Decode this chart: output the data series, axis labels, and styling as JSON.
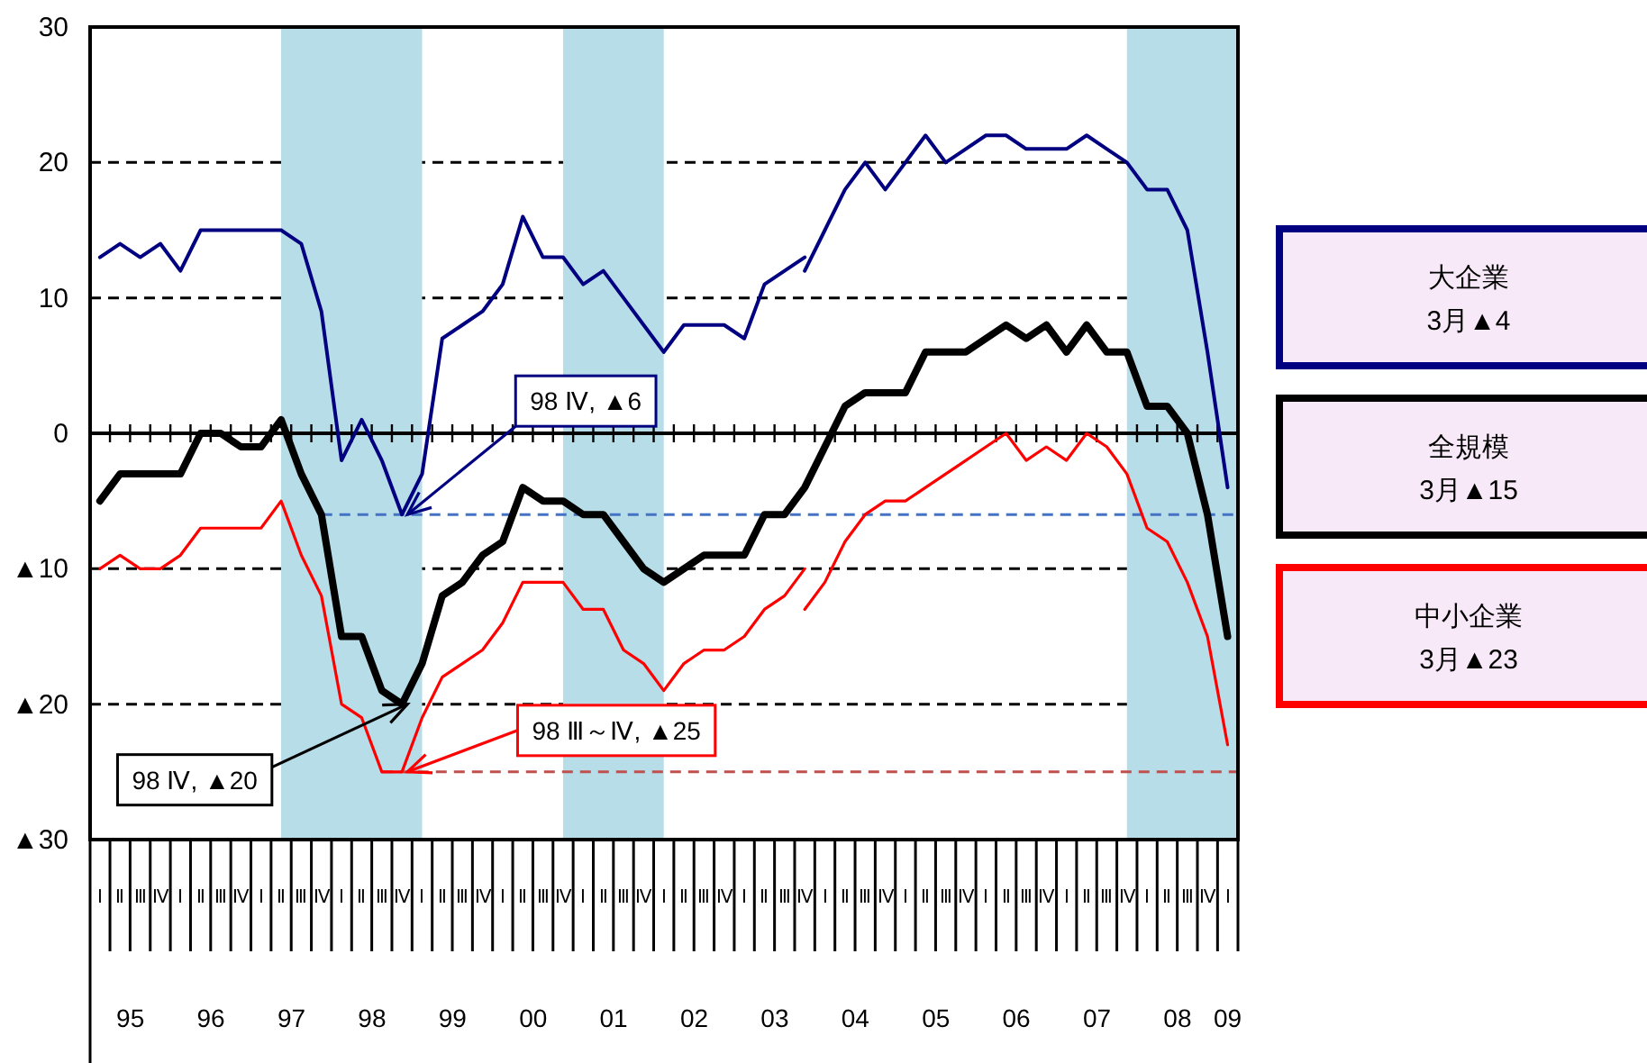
{
  "chart_data": {
    "type": "line",
    "x": [
      "1995-02-15",
      "1995-05-15",
      "1995-08-15",
      "1995-11-15",
      "1996-02-15",
      "1996-05-15",
      "1996-08-15",
      "1996-11-15",
      "1997-02-15",
      "1997-05-15",
      "1997-08-15",
      "1997-11-15",
      "1998-02-15",
      "1998-05-15",
      "1998-08-15",
      "1998-11-15",
      "1999-02-15",
      "1999-05-15",
      "1999-08-15",
      "1999-11-15",
      "2000-02-15",
      "2000-05-15",
      "2000-08-15",
      "2000-11-15",
      "2001-02-15",
      "2001-05-15",
      "2001-08-15",
      "2001-11-15",
      "2002-02-15",
      "2002-05-15",
      "2002-08-15",
      "2002-11-15",
      "2003-02-15",
      "2003-05-15",
      "2003-08-15",
      "2003-11-15",
      "2004-02-15",
      "2004-05-15",
      "2004-08-15",
      "2004-11-15",
      "2005-02-15",
      "2005-05-15",
      "2005-08-15",
      "2005-11-15",
      "2006-02-15",
      "2006-05-15",
      "2006-08-15",
      "2006-11-15",
      "2007-02-15",
      "2007-05-15",
      "2007-08-15",
      "2007-11-15",
      "2008-02-15",
      "2008-05-15",
      "2008-08-15",
      "2008-11-15",
      "2009-02-15"
    ],
    "xlim": [
      "1995-01",
      "2009-04"
    ],
    "xticks": [
      {
        "value": "1995-07-01",
        "label": "95"
      },
      {
        "value": "1996-07-01",
        "label": "96"
      },
      {
        "value": "1997-07-01",
        "label": "97"
      },
      {
        "value": "1998-07-01",
        "label": "98"
      },
      {
        "value": "1999-07-01",
        "label": "99"
      },
      {
        "value": "2000-07-01",
        "label": "00"
      },
      {
        "value": "2001-07-01",
        "label": "01"
      },
      {
        "value": "2002-07-01",
        "label": "02"
      },
      {
        "value": "2003-07-01",
        "label": "03"
      },
      {
        "value": "2004-07-01",
        "label": "04"
      },
      {
        "value": "2005-07-01",
        "label": "05"
      },
      {
        "value": "2006-07-01",
        "label": "06"
      },
      {
        "value": "2007-07-01",
        "label": "07"
      },
      {
        "value": "2008-07-01",
        "label": "08"
      },
      {
        "value": "2009-02-15",
        "label": "09"
      }
    ],
    "ylim": [
      -30,
      30
    ],
    "yticks": [
      {
        "value": -30,
        "label": "▲30"
      },
      {
        "value": -20,
        "label": "▲20"
      },
      {
        "value": -10,
        "label": "▲10"
      },
      0,
      10,
      20,
      30
    ],
    "grid": "y",
    "legend": "right",
    "bands": [
      {
        "axis": "x",
        "from": "1997-05-15",
        "to": "1999-02-15",
        "color": "#b7dde8"
      },
      {
        "axis": "x",
        "from": "2000-11-15",
        "to": "2002-02-15",
        "color": "#b7dde8"
      },
      {
        "axis": "x",
        "from": "2007-11-15",
        "to": "2009-04",
        "color": "#b7dde8"
      }
    ],
    "ref_lines": [
      {
        "axis": "y",
        "value": -6,
        "color": "#4472c4",
        "line_style": "dashed"
      },
      {
        "axis": "y",
        "value": -25,
        "color": "#c0504d",
        "line_style": "dashed"
      }
    ],
    "annotations": [
      "Ⅰ",
      "Ⅱ",
      "Ⅲ",
      "Ⅳ",
      "Ⅰ",
      "Ⅱ",
      "Ⅲ",
      "Ⅳ",
      "Ⅰ",
      "Ⅱ",
      "Ⅲ",
      "Ⅳ",
      "Ⅰ",
      "Ⅱ",
      "Ⅲ",
      "Ⅳ",
      "Ⅰ",
      "Ⅱ",
      "Ⅲ",
      "Ⅳ",
      "Ⅰ",
      "Ⅱ",
      "Ⅲ",
      "Ⅳ",
      "Ⅰ",
      "Ⅱ",
      "Ⅲ",
      "Ⅳ",
      "Ⅰ",
      "Ⅱ",
      "Ⅲ",
      "Ⅳ",
      "Ⅰ",
      "Ⅱ",
      "Ⅲ",
      "Ⅳ",
      "Ⅰ",
      "Ⅱ",
      "Ⅲ",
      "Ⅳ",
      "Ⅰ",
      "Ⅱ",
      "Ⅲ",
      "Ⅳ",
      "Ⅰ",
      "Ⅱ",
      "Ⅲ",
      "Ⅳ",
      "Ⅰ",
      "Ⅱ",
      "Ⅲ",
      "Ⅳ",
      "Ⅰ",
      "Ⅱ",
      "Ⅲ",
      "Ⅳ",
      "Ⅰ",
      {
        "text": "98 Ⅳ, ▲6",
        "x": "1998-11-15",
        "y": -6
      },
      {
        "text": "98 Ⅳ, ▲20",
        "x": "1998-11-15",
        "y": -20
      },
      {
        "text": "98 Ⅲ～Ⅳ, ▲25",
        "x": "1998-11-15",
        "y": -25
      }
    ],
    "series": [
      {
        "color": "#000080",
        "x": [
          "1995-02-15",
          "1995-05-15",
          "1995-08-15",
          "1995-11-15",
          "1996-02-15",
          "1996-05-15",
          "1996-08-15",
          "1996-11-15",
          "1997-02-15",
          "1997-05-15",
          "1997-08-15",
          "1997-11-15",
          "1998-02-15",
          "1998-05-15",
          "1998-08-15",
          "1998-11-15",
          "1999-02-15",
          "1999-05-15",
          "1999-08-15",
          "1999-11-15",
          "2000-02-15",
          "2000-05-15",
          "2000-08-15",
          "2000-11-15",
          "2001-02-15",
          "2001-05-15",
          "2001-08-15",
          "2001-11-15",
          "2002-02-15",
          "2002-05-15",
          "2002-08-15",
          "2002-11-15",
          "2003-02-15",
          "2003-05-15",
          "2003-08-15",
          "2003-11-15"
        ],
        "values": [
          13,
          14,
          13,
          14,
          12,
          15,
          15,
          15,
          15,
          15,
          14,
          9,
          -2,
          1,
          -2,
          -6,
          -3,
          7,
          8,
          9,
          11,
          16,
          13,
          13,
          11,
          12,
          10,
          8,
          6,
          8,
          8,
          8,
          7,
          11,
          12,
          13
        ]
      },
      {
        "name": "大企業\n3月▲4",
        "color": "#000080",
        "x": [
          "2003-11-15",
          "2004-02-15",
          "2004-05-15",
          "2004-08-15",
          "2004-11-15",
          "2005-02-15",
          "2005-05-15",
          "2005-08-15",
          "2005-11-15",
          "2006-02-15",
          "2006-05-15",
          "2006-08-15",
          "2006-11-15",
          "2007-02-15",
          "2007-05-15",
          "2007-08-15",
          "2007-11-15",
          "2008-02-15",
          "2008-05-15",
          "2008-08-15",
          "2008-11-15",
          "2009-02-15"
        ],
        "values": [
          12,
          15,
          18,
          20,
          18,
          20,
          22,
          20,
          21,
          22,
          22,
          21,
          21,
          21,
          22,
          21,
          20,
          18,
          18,
          15,
          6,
          -4
        ]
      },
      {
        "name": "全規模\n3月▲15",
        "color": "#000000",
        "values": [
          -5,
          -3,
          -3,
          -3,
          -3,
          0,
          0,
          -1,
          -1,
          1,
          -3,
          -6,
          -15,
          -15,
          -19,
          -20,
          -17,
          -12,
          -11,
          -9,
          -8,
          -4,
          -5,
          -5,
          -6,
          -6,
          -8,
          -10,
          -11,
          -10,
          -9,
          -9,
          -9,
          -6,
          -6,
          -4,
          -1,
          2,
          3,
          3,
          3,
          6,
          6,
          6,
          7,
          8,
          7,
          8,
          6,
          8,
          6,
          6,
          2,
          2,
          0,
          -6,
          -15
        ]
      },
      {
        "color": "#ff0000",
        "x": [
          "1995-02-15",
          "1995-05-15",
          "1995-08-15",
          "1995-11-15",
          "1996-02-15",
          "1996-05-15",
          "1996-08-15",
          "1996-11-15",
          "1997-02-15",
          "1997-05-15",
          "1997-08-15",
          "1997-11-15",
          "1998-02-15",
          "1998-05-15",
          "1998-08-15",
          "1998-11-15",
          "1999-02-15",
          "1999-05-15",
          "1999-08-15",
          "1999-11-15",
          "2000-02-15",
          "2000-05-15",
          "2000-08-15",
          "2000-11-15",
          "2001-02-15",
          "2001-05-15",
          "2001-08-15",
          "2001-11-15",
          "2002-02-15",
          "2002-05-15",
          "2002-08-15",
          "2002-11-15",
          "2003-02-15",
          "2003-05-15",
          "2003-08-15",
          "2003-11-15"
        ],
        "values": [
          -10,
          -9,
          -10,
          -10,
          -9,
          -7,
          -7,
          -7,
          -7,
          -5,
          -9,
          -12,
          -20,
          -21,
          -25,
          -25,
          -21,
          -18,
          -17,
          -16,
          -14,
          -11,
          -11,
          -11,
          -13,
          -13,
          -16,
          -17,
          -19,
          -17,
          -16,
          -16,
          -15,
          -13,
          -12,
          -10
        ]
      },
      {
        "name": "中小企業\n3月▲23",
        "color": "#ff0000",
        "x": [
          "2003-11-15",
          "2004-02-15",
          "2004-05-15",
          "2004-08-15",
          "2004-11-15",
          "2005-02-15",
          "2005-05-15",
          "2005-08-15",
          "2005-11-15",
          "2006-02-15",
          "2006-05-15",
          "2006-08-15",
          "2006-11-15",
          "2007-02-15",
          "2007-05-15",
          "2007-08-15",
          "2007-11-15",
          "2008-02-15",
          "2008-05-15",
          "2008-08-15",
          "2008-11-15",
          "2009-02-15"
        ],
        "values": [
          -13,
          -11,
          -8,
          -6,
          -5,
          -5,
          -4,
          -3,
          -2,
          -1,
          0,
          -2,
          -1,
          -2,
          0,
          -1,
          -3,
          -7,
          -8,
          -11,
          -15,
          -23
        ]
      }
    ]
  }
}
